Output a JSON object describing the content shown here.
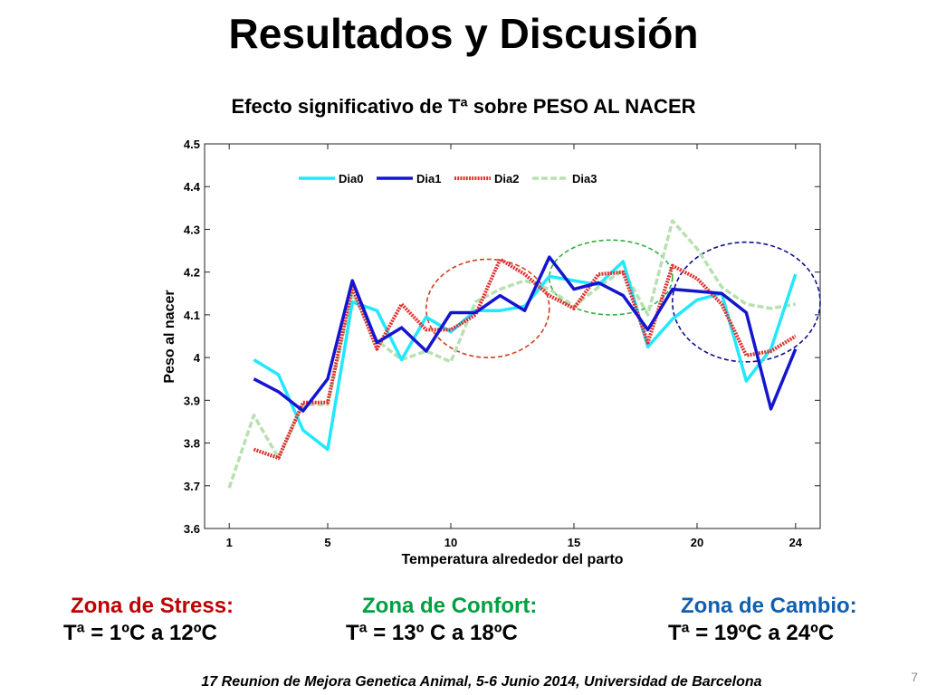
{
  "slide": {
    "title": "Resultados y Discusión",
    "footer": "17 Reunion de Mejora Genetica Animal, 5-6 Junio 2014, Universidad de Barcelona",
    "page_number": "7"
  },
  "zones": {
    "stress": {
      "label": "Zona de Stress:",
      "range": "Tª = 1ºC a 12ºC",
      "color": "#c00000"
    },
    "confort": {
      "label": "Zona de Confort:",
      "range": "Tª = 13º C a  18ºC",
      "color": "#00a040"
    },
    "cambio": {
      "label": "Zona de Cambio:",
      "range": "Tª = 19ºC a  24ºC",
      "color": "#1060b0"
    }
  },
  "chart_data": {
    "type": "line",
    "title": "Efecto  significativo de Tª sobre PESO AL NACER",
    "xlabel": "Temperatura alrededor del parto",
    "ylabel": "Peso al nacer",
    "xlim": [
      0,
      25
    ],
    "ylim": [
      3.6,
      4.5
    ],
    "x_ticks": [
      1,
      5,
      10,
      15,
      20,
      24
    ],
    "y_ticks": [
      "3.6",
      "3.7",
      "3.8",
      "3.9",
      "4",
      "4.1",
      "4.2",
      "4.3",
      "4.4",
      "4.5"
    ],
    "grid": false,
    "legend_position": "top",
    "series": [
      {
        "name": "Dia0",
        "color": "#22e8ff",
        "style": "solid",
        "x": [
          2,
          3,
          4,
          5,
          6,
          7,
          8,
          9,
          10,
          11,
          12,
          13,
          14,
          15,
          16,
          17,
          18,
          19,
          20,
          21,
          22,
          23,
          24
        ],
        "y": [
          3.995,
          3.96,
          3.83,
          3.785,
          4.13,
          4.11,
          3.995,
          4.095,
          4.06,
          4.11,
          4.11,
          4.12,
          4.19,
          4.18,
          4.17,
          4.225,
          4.025,
          4.09,
          4.135,
          4.15,
          3.945,
          4.02,
          4.195
        ]
      },
      {
        "name": "Dia1",
        "color": "#1515d0",
        "style": "solid",
        "x": [
          2,
          3,
          4,
          5,
          6,
          7,
          8,
          9,
          10,
          11,
          12,
          13,
          14,
          15,
          16,
          17,
          18,
          19,
          20,
          21,
          22,
          23,
          24
        ],
        "y": [
          3.95,
          3.92,
          3.875,
          3.95,
          4.18,
          4.035,
          4.07,
          4.015,
          4.105,
          4.105,
          4.145,
          4.11,
          4.235,
          4.16,
          4.175,
          4.145,
          4.065,
          4.16,
          4.155,
          4.15,
          4.105,
          3.88,
          4.02
        ]
      },
      {
        "name": "Dia2",
        "color": "#e03030",
        "style": "dotted",
        "x": [
          2,
          3,
          4,
          5,
          6,
          7,
          8,
          9,
          10,
          11,
          12,
          13,
          14,
          15,
          16,
          17,
          18,
          19,
          20,
          21,
          22,
          23,
          24
        ],
        "y": [
          3.785,
          3.765,
          3.895,
          3.895,
          4.165,
          4.02,
          4.125,
          4.065,
          4.065,
          4.1,
          4.23,
          4.195,
          4.145,
          4.115,
          4.195,
          4.2,
          4.035,
          4.215,
          4.185,
          4.125,
          4.005,
          4.015,
          4.05
        ]
      },
      {
        "name": "Dia3",
        "color": "#b8e0b0",
        "style": "dashed",
        "x": [
          1,
          2,
          3,
          4,
          5,
          6,
          7,
          8,
          9,
          10,
          11,
          12,
          13,
          14,
          15,
          16,
          17,
          18,
          19,
          20,
          21,
          22,
          23,
          24
        ],
        "y": [
          3.695,
          3.865,
          3.765,
          3.89,
          3.89,
          4.15,
          4.04,
          3.995,
          4.015,
          3.99,
          4.13,
          4.16,
          4.18,
          4.16,
          4.12,
          4.165,
          4.205,
          4.1,
          4.32,
          4.255,
          4.165,
          4.125,
          4.115,
          4.125
        ]
      }
    ],
    "annotations": [
      {
        "shape": "dashed-ellipse",
        "color": "#d04020",
        "x_range": [
          9,
          14
        ],
        "y_range": [
          4.0,
          4.23
        ]
      },
      {
        "shape": "dashed-ellipse",
        "color": "#30b040",
        "x_range": [
          14,
          19
        ],
        "y_range": [
          4.1,
          4.275
        ]
      },
      {
        "shape": "dashed-ellipse",
        "color": "#101090",
        "x_range": [
          19,
          25
        ],
        "y_range": [
          3.99,
          4.27
        ]
      }
    ]
  }
}
